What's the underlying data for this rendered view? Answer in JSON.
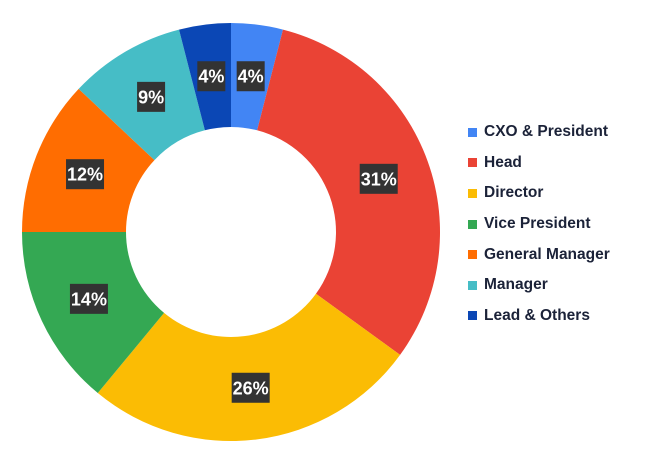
{
  "chart_data": {
    "type": "pie",
    "donut": true,
    "categories": [
      "CXO & President",
      "Head",
      "Director",
      "Vice President",
      "General Manager",
      "Manager",
      "Lead & Others"
    ],
    "values": [
      4,
      31,
      26,
      14,
      12,
      9,
      4
    ],
    "labels": [
      "4%",
      "31%",
      "26%",
      "14%",
      "12%",
      "9%",
      "4%"
    ],
    "colors": [
      "#4285F4",
      "#EA4335",
      "#FBBC04",
      "#34A853",
      "#FF6D01",
      "#46BDC6",
      "#0B47B5"
    ],
    "legend_position": "right",
    "start": "top",
    "direction": "clockwise"
  }
}
